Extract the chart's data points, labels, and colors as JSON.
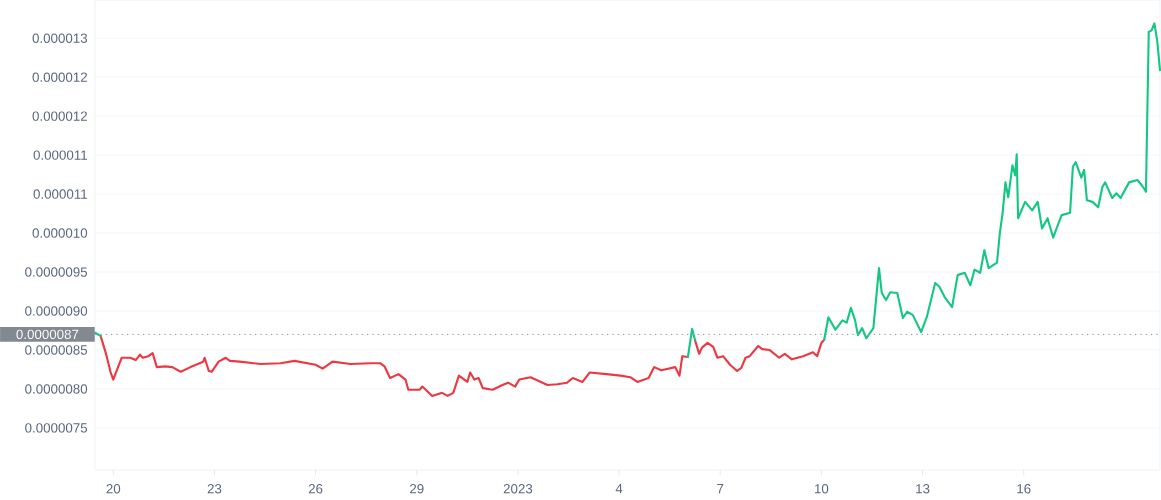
{
  "chart_data": {
    "type": "line",
    "x": [
      "2022-12-19T11:00",
      "2022-12-19T15:00",
      "2022-12-19T19:00",
      "2022-12-19T22:00",
      "2022-12-20T00:00",
      "2022-12-20T04:00",
      "2022-12-20T06:00",
      "2022-12-20T12:00",
      "2022-12-20T16:00",
      "2022-12-20T19:00",
      "2022-12-20T21:00",
      "2022-12-21T01:00",
      "2022-12-21T04:00",
      "2022-12-21T07:00",
      "2022-12-21T13:00",
      "2022-12-21T18:00",
      "2022-12-22T00:00",
      "2022-12-22T07:00",
      "2022-12-22T16:00",
      "2022-12-22T17:00",
      "2022-12-22T20:00",
      "2022-12-22T22:00",
      "2022-12-23T03:00",
      "2022-12-23T08:00",
      "2022-12-23T11:00",
      "2022-12-23T18:00",
      "2022-12-24T09:00",
      "2022-12-24T23:00",
      "2022-12-25T09:00",
      "2022-12-26T00:00",
      "2022-12-26T05:00",
      "2022-12-26T12:00",
      "2022-12-27T01:00",
      "2022-12-27T15:00",
      "2022-12-27T22:00",
      "2022-12-28T01:00",
      "2022-12-28T05:00",
      "2022-12-28T11:00",
      "2022-12-28T16:00",
      "2022-12-28T18:00",
      "2022-12-29T02:00",
      "2022-12-29T04:00",
      "2022-12-29T11:00",
      "2022-12-29T18:00",
      "2022-12-29T22:00",
      "2022-12-30T02:00",
      "2022-12-30T06:00",
      "2022-12-30T12:00",
      "2022-12-30T14:00",
      "2022-12-30T17:00",
      "2022-12-30T20:00",
      "2022-12-30T23:00",
      "2022-12-31T06:00",
      "2022-12-31T13:00",
      "2022-12-31T17:00",
      "2022-12-31T22:00",
      "2023-01-01T01:00",
      "2023-01-01T09:00",
      "2023-01-01T21:00",
      "2023-01-02T04:00",
      "2023-01-02T11:00",
      "2023-01-02T15:00",
      "2023-01-02T22:00",
      "2023-01-03T03:00",
      "2023-01-03T15:00",
      "2023-01-04T01:00",
      "2023-01-04T08:00",
      "2023-01-04T13:00",
      "2023-01-04T21:00",
      "2023-01-05T01:00",
      "2023-01-05T06:00",
      "2023-01-05T16:00",
      "2023-01-05T19:00",
      "2023-01-05T21:00",
      "2023-01-06T01:00",
      "2023-01-06T04:00",
      "2023-01-06T06:00",
      "2023-01-06T09:00",
      "2023-01-06T11:00",
      "2023-01-06T15:00",
      "2023-01-06T19:00",
      "2023-01-06T22:00",
      "2023-01-07T02:00",
      "2023-01-07T07:00",
      "2023-01-07T12:00",
      "2023-01-07T15:00",
      "2023-01-07T18:00",
      "2023-01-07T21:00",
      "2023-01-08T03:00",
      "2023-01-08T06:00",
      "2023-01-08T11:00",
      "2023-01-08T18:00",
      "2023-01-08T22:00",
      "2023-01-09T03:00",
      "2023-01-09T11:00",
      "2023-01-09T18:00",
      "2023-01-09T21:00",
      "2023-01-10T00:00",
      "2023-01-10T02:00",
      "2023-01-10T05:00",
      "2023-01-10T10:00",
      "2023-01-10T15:00",
      "2023-01-10T18:00",
      "2023-01-10T21:00",
      "2023-01-11T00:00",
      "2023-01-11T02:00",
      "2023-01-11T05:00",
      "2023-01-11T08:00",
      "2023-01-11T13:00",
      "2023-01-11T17:00",
      "2023-01-11T19:00",
      "2023-01-11T22:00",
      "2023-01-12T01:00",
      "2023-01-12T06:00",
      "2023-01-12T10:00",
      "2023-01-12T13:00",
      "2023-01-12T17:00",
      "2023-01-12T23:00",
      "2023-01-13T03:00",
      "2023-01-13T09:00",
      "2023-01-13T12:00",
      "2023-01-13T16:00",
      "2023-01-13T21:00",
      "2023-01-14T01:00",
      "2023-01-14T06:00",
      "2023-01-14T10:00",
      "2023-01-14T13:00",
      "2023-01-14T17:00",
      "2023-01-14T20:00",
      "2023-01-14T23:00",
      "2023-01-15T05:00",
      "2023-01-15T07:00",
      "2023-01-15T09:00",
      "2023-01-15T11:00",
      "2023-01-15T13:00",
      "2023-01-15T16:00",
      "2023-01-15T18:00",
      "2023-01-15T19:00",
      "2023-01-15T20:00",
      "2023-01-16T01:00",
      "2023-01-16T06:00",
      "2023-01-16T10:00",
      "2023-01-16T13:00",
      "2023-01-16T17:00",
      "2023-01-16T21:00",
      "2023-01-16T23:00",
      "2023-01-17T03:00",
      "2023-01-17T09:00",
      "2023-01-17T11:00",
      "2023-01-17T13:00",
      "2023-01-17T17:00",
      "2023-01-17T19:00",
      "2023-01-17T21:00",
      "2023-01-18T01:00",
      "2023-01-18T05:00",
      "2023-01-18T08:00",
      "2023-01-18T10:00",
      "2023-01-18T15:00",
      "2023-01-18T18:00",
      "2023-01-18T21:00",
      "2023-01-19T03:00",
      "2023-01-19T09:00",
      "2023-01-19T13:00",
      "2023-01-19T15:00",
      "2023-01-19T17:00",
      "2023-01-19T19:00",
      "2023-01-19T21:00",
      "2023-01-19T23:00",
      "2023-01-20T01:00"
    ],
    "series": [
      {
        "color": "#ea3943",
        "values": [
          null,
          8.68e-06,
          8.44e-06,
          8.22e-06,
          8.12e-06,
          8.31e-06,
          8.4e-06,
          8.4e-06,
          8.37e-06,
          8.44e-06,
          8.4e-06,
          8.42e-06,
          8.46e-06,
          8.28e-06,
          8.29e-06,
          8.28e-06,
          8.22e-06,
          8.28e-06,
          8.35e-06,
          8.4e-06,
          8.23e-06,
          8.22e-06,
          8.35e-06,
          8.4e-06,
          8.36e-06,
          8.35e-06,
          8.32e-06,
          8.33e-06,
          8.36e-06,
          8.31e-06,
          8.26e-06,
          8.35e-06,
          8.32e-06,
          8.33e-06,
          8.33e-06,
          8.29e-06,
          8.14e-06,
          8.19e-06,
          8.12e-06,
          7.99e-06,
          7.99e-06,
          8.03e-06,
          7.91e-06,
          7.95e-06,
          7.91e-06,
          7.95e-06,
          8.17e-06,
          8.09e-06,
          8.21e-06,
          8.12e-06,
          8.14e-06,
          8.01e-06,
          7.99e-06,
          8.05e-06,
          8.08e-06,
          8.03e-06,
          8.12e-06,
          8.15e-06,
          8.05e-06,
          8.06e-06,
          8.08e-06,
          8.14e-06,
          8.09e-06,
          8.21e-06,
          8.19e-06,
          8.17e-06,
          8.15e-06,
          8.09e-06,
          8.14e-06,
          8.28e-06,
          8.24e-06,
          8.28e-06,
          8.17e-06,
          8.42e-06,
          8.41e-06,
          null,
          8.63e-06,
          8.45e-06,
          8.53e-06,
          8.59e-06,
          8.54e-06,
          8.4e-06,
          8.42e-06,
          8.31e-06,
          8.23e-06,
          8.27e-06,
          8.4e-06,
          8.42e-06,
          8.55e-06,
          8.51e-06,
          8.5e-06,
          8.4e-06,
          8.45e-06,
          8.38e-06,
          8.42e-06,
          8.47e-06,
          8.42e-06,
          8.59e-06,
          8.63e-06,
          null,
          null,
          null,
          null,
          null,
          null,
          null,
          null,
          null,
          null,
          null,
          null,
          null,
          null,
          null,
          null,
          null,
          null,
          null,
          null,
          null,
          null,
          null,
          null,
          null,
          null,
          null,
          null,
          null,
          null,
          null,
          null,
          null,
          null,
          null,
          null,
          null,
          null,
          null,
          null,
          null,
          null,
          null,
          null,
          null,
          null,
          null,
          null,
          null,
          null,
          null,
          null,
          null,
          null,
          null,
          null,
          null,
          null,
          null,
          null,
          null,
          null,
          null,
          null,
          null,
          null,
          null,
          null,
          null,
          null
        ]
      },
      {
        "color": "#16c784",
        "values": [
          8.72e-06,
          8.68e-06,
          null,
          null,
          null,
          null,
          null,
          null,
          null,
          null,
          null,
          null,
          null,
          null,
          null,
          null,
          null,
          null,
          null,
          null,
          null,
          null,
          null,
          null,
          null,
          null,
          null,
          null,
          null,
          null,
          null,
          null,
          null,
          null,
          null,
          null,
          null,
          null,
          null,
          null,
          null,
          null,
          null,
          null,
          null,
          null,
          null,
          null,
          null,
          null,
          null,
          null,
          null,
          null,
          null,
          null,
          null,
          null,
          null,
          null,
          null,
          null,
          null,
          null,
          null,
          null,
          null,
          null,
          null,
          null,
          null,
          null,
          null,
          null,
          8.41e-06,
          8.77e-06,
          8.63e-06,
          null,
          null,
          null,
          null,
          null,
          null,
          null,
          null,
          null,
          null,
          null,
          null,
          null,
          null,
          null,
          null,
          null,
          null,
          null,
          null,
          null,
          8.63e-06,
          8.92e-06,
          8.76e-06,
          8.88e-06,
          8.85e-06,
          9.04e-06,
          8.88e-06,
          8.69e-06,
          8.78e-06,
          8.65e-06,
          8.78e-06,
          9.55e-06,
          9.23e-06,
          9.14e-06,
          9.24e-06,
          9.23e-06,
          8.91e-06,
          8.99e-06,
          8.95e-06,
          8.73e-06,
          8.92e-06,
          9.36e-06,
          9.31e-06,
          9.17e-06,
          9.05e-06,
          9.46e-06,
          9.49e-06,
          9.33e-06,
          9.53e-06,
          9.49e-06,
          9.78e-06,
          9.55e-06,
          9.62e-06,
          1e-05,
          1.026e-05,
          1.065e-05,
          1.046e-05,
          1.087e-05,
          1.074e-05,
          1.101e-05,
          1.019e-05,
          1.04e-05,
          1.029e-05,
          1.04e-05,
          1.006e-05,
          1.019e-05,
          9.94e-06,
          1.004e-05,
          1.023e-05,
          1.026e-05,
          1.085e-05,
          1.091e-05,
          1.071e-05,
          1.081e-05,
          1.042e-05,
          1.04e-05,
          1.033e-05,
          1.059e-05,
          1.065e-05,
          1.045e-05,
          1.051e-05,
          1.045e-05,
          1.065e-05,
          1.068e-05,
          1.059e-05,
          1.053e-05,
          1.258e-05,
          1.26e-05,
          1.269e-05,
          1.247e-05,
          1.209e-05
        ]
      }
    ],
    "xlim": [
      "2022-12-19T11:00",
      "2023-01-20T01:00"
    ],
    "xticks": [
      {
        "value": "2022-12-20",
        "label": "20"
      },
      {
        "value": "2022-12-23",
        "label": "23"
      },
      {
        "value": "2022-12-26",
        "label": "26"
      },
      {
        "value": "2022-12-29",
        "label": "29"
      },
      {
        "value": "2023-01-01",
        "label": "2023"
      },
      {
        "value": "2023-01-04",
        "label": "4"
      },
      {
        "value": "2023-01-07",
        "label": "7"
      },
      {
        "value": "2023-01-10",
        "label": "10"
      },
      {
        "value": "2023-01-13",
        "label": "13"
      },
      {
        "value": "2023-01-16",
        "label": "16"
      }
    ],
    "ylim": [
      6.96e-06,
      1.299e-05
    ],
    "yticks": [
      {
        "value": 7.5e-06,
        "label": "0.0000075"
      },
      {
        "value": 8e-06,
        "label": "0.0000080"
      },
      {
        "value": 8.5e-06,
        "label": "0.0000085"
      },
      {
        "value": 9e-06,
        "label": "0.0000090"
      },
      {
        "value": 9.5e-06,
        "label": "0.0000095"
      },
      {
        "value": 1e-05,
        "label": "0.000010"
      },
      {
        "value": 1.05e-05,
        "label": "0.000011"
      },
      {
        "value": 1.1e-05,
        "label": "0.000011"
      },
      {
        "value": 1.15e-05,
        "label": "0.000012"
      },
      {
        "value": 1.2e-05,
        "label": "0.000012"
      },
      {
        "value": 1.25e-05,
        "label": "0.000013"
      }
    ],
    "ref_lines": [
      {
        "axis": "y",
        "value": 8.7e-06,
        "label": "0.0000087",
        "color": "#9aa1ab",
        "line_style": "dotted"
      }
    ],
    "grid": "y"
  }
}
